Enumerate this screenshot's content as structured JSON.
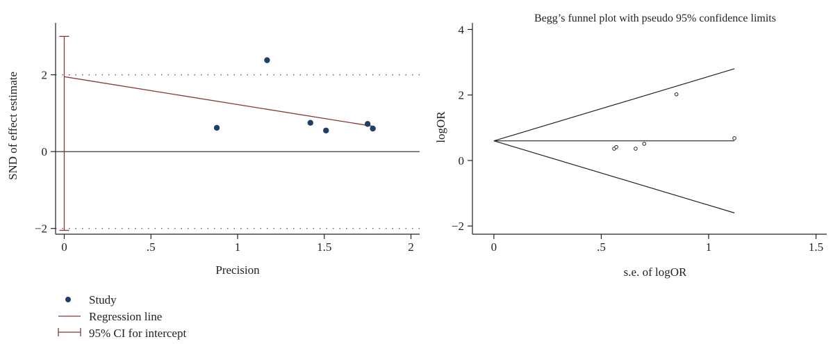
{
  "chart_data": [
    {
      "type": "scatter",
      "title": "",
      "xlabel": "Precision",
      "ylabel": "SND of effect estimate",
      "xlim": [
        -0.05,
        2.05
      ],
      "ylim": [
        -2.15,
        3.35
      ],
      "xticks": [
        0,
        0.5,
        1,
        1.5,
        2
      ],
      "xtick_labels": [
        "0",
        ".5",
        "1",
        "1.5",
        "2"
      ],
      "yticks": [
        -2,
        0,
        2
      ],
      "ytick_labels": [
        "−2",
        "0",
        "2"
      ],
      "grid": false,
      "reference_lines": [
        {
          "kind": "zero-line",
          "y": 0
        },
        {
          "kind": "dotted-bound",
          "y": 2
        },
        {
          "kind": "dotted-bound",
          "y": -2
        }
      ],
      "series": [
        {
          "name": "Study",
          "kind": "points",
          "color": "#1f3f66",
          "x": [
            0.88,
            1.17,
            1.42,
            1.51,
            1.75,
            1.78
          ],
          "y": [
            0.62,
            2.38,
            0.75,
            0.55,
            0.72,
            0.6
          ]
        },
        {
          "name": "Regression line",
          "kind": "line",
          "color": "#8b3535",
          "x": [
            0,
            1.78
          ],
          "y": [
            1.95,
            0.66
          ]
        },
        {
          "name": "95% CI for intercept",
          "kind": "errorbar",
          "color": "#8b3535",
          "x": 0,
          "ylow": -2.05,
          "yhigh": 3.0
        }
      ],
      "legend": {
        "placement": "bottom-left",
        "entries": [
          "Study",
          "Regression line",
          "95% CI for intercept"
        ]
      }
    },
    {
      "type": "scatter",
      "title": "Begg’s funnel plot with pseudo 95% confidence limits",
      "xlabel": "s.e. of logOR",
      "ylabel": "logOR",
      "xlim": [
        -0.1,
        1.55
      ],
      "ylim": [
        -2.25,
        4.2
      ],
      "xticks": [
        0,
        0.5,
        1,
        1.5
      ],
      "xtick_labels": [
        "0",
        ".5",
        "1",
        "1.5"
      ],
      "yticks": [
        -2,
        0,
        2,
        4
      ],
      "ytick_labels": [
        "−2",
        "0",
        "2",
        "4"
      ],
      "grid": false,
      "series": [
        {
          "name": "",
          "kind": "hollow-points",
          "color": "#222222",
          "x": [
            0.56,
            0.57,
            0.66,
            0.7,
            0.85,
            1.12
          ],
          "y": [
            0.36,
            0.41,
            0.36,
            0.51,
            2.02,
            0.68
          ]
        },
        {
          "name": "",
          "kind": "line",
          "color": "#222222",
          "x": [
            0,
            1.12
          ],
          "y": [
            0.6,
            2.8
          ]
        },
        {
          "name": "",
          "kind": "line",
          "color": "#222222",
          "x": [
            0,
            1.12
          ],
          "y": [
            0.6,
            -1.6
          ]
        },
        {
          "name": "",
          "kind": "line",
          "color": "#222222",
          "x": [
            0,
            1.12
          ],
          "y": [
            0.6,
            0.6
          ]
        }
      ]
    }
  ]
}
